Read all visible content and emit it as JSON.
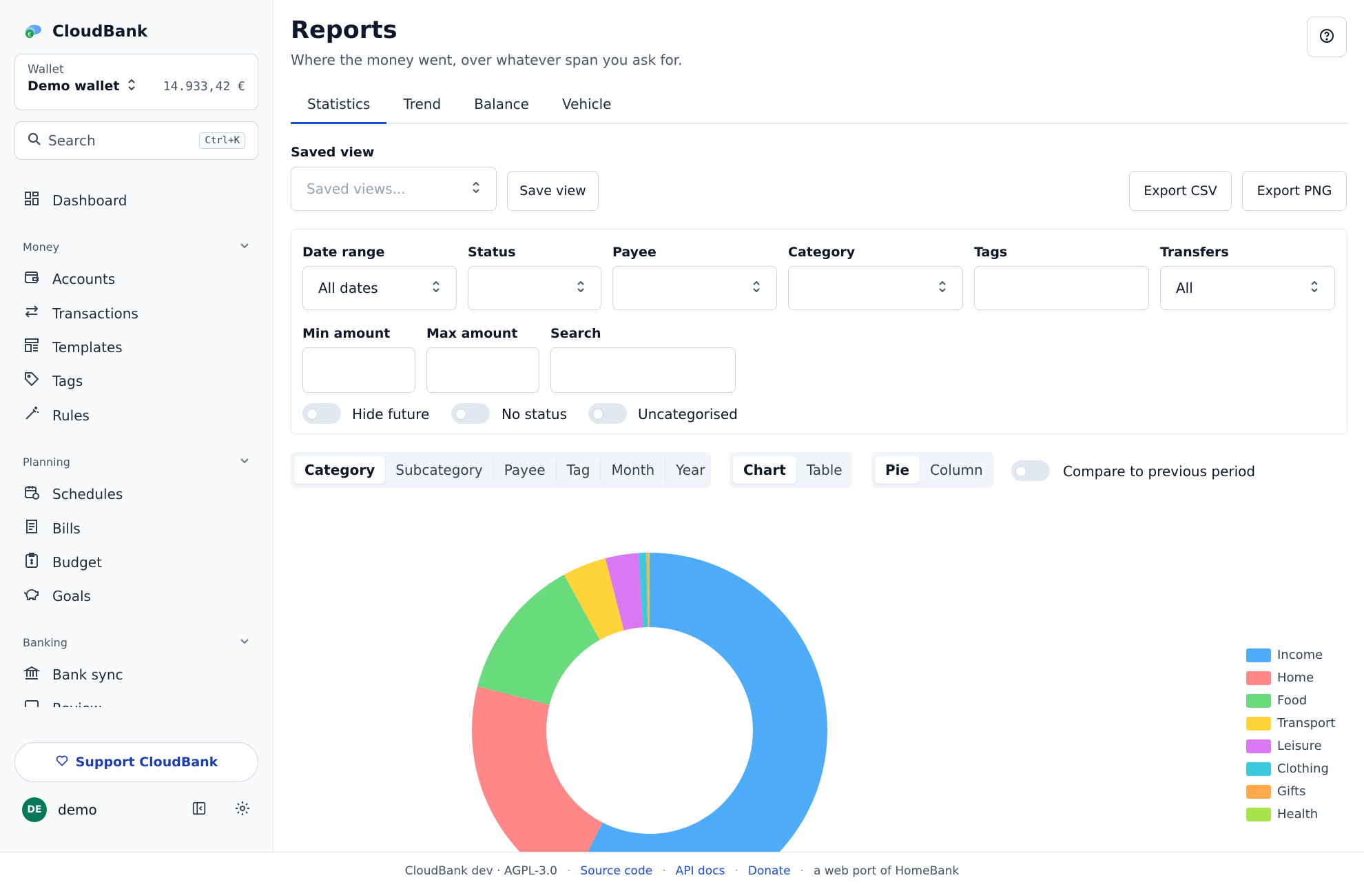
{
  "app": {
    "name": "CloudBank"
  },
  "wallet": {
    "label": "Wallet",
    "name": "Demo wallet",
    "balance": "14.933,42 €"
  },
  "search": {
    "placeholder": "Search",
    "shortcut": "Ctrl+K"
  },
  "sidebar": {
    "dashboard": "Dashboard",
    "sections": [
      {
        "title": "Money",
        "items": [
          "Accounts",
          "Transactions",
          "Templates",
          "Tags",
          "Rules"
        ]
      },
      {
        "title": "Planning",
        "items": [
          "Schedules",
          "Bills",
          "Budget",
          "Goals"
        ]
      },
      {
        "title": "Banking",
        "items": [
          "Bank sync",
          "Review"
        ]
      }
    ],
    "support": "Support CloudBank",
    "user": {
      "initials": "DE",
      "name": "demo"
    }
  },
  "page": {
    "title": "Reports",
    "subtitle": "Where the money went, over whatever span you ask for."
  },
  "tabs": [
    "Statistics",
    "Trend",
    "Balance",
    "Vehicle"
  ],
  "saved_view": {
    "label": "Saved view",
    "placeholder": "Saved views...",
    "save_button": "Save view"
  },
  "export": {
    "csv": "Export CSV",
    "png": "Export PNG"
  },
  "filters": {
    "date_range": {
      "label": "Date range",
      "value": "All dates"
    },
    "status": {
      "label": "Status",
      "value": ""
    },
    "payee": {
      "label": "Payee",
      "value": ""
    },
    "category": {
      "label": "Category",
      "value": ""
    },
    "tags": {
      "label": "Tags",
      "value": ""
    },
    "transfers": {
      "label": "Transfers",
      "value": "All"
    },
    "min_amount": {
      "label": "Min amount",
      "value": ""
    },
    "max_amount": {
      "label": "Max amount",
      "value": ""
    },
    "search": {
      "label": "Search",
      "value": ""
    },
    "toggles": [
      "Hide future",
      "No status",
      "Uncategorised"
    ]
  },
  "groupby": {
    "options": [
      "Category",
      "Subcategory",
      "Payee",
      "Tag",
      "Month",
      "Year"
    ],
    "selected": "Category"
  },
  "view_mode": {
    "options": [
      "Chart",
      "Table"
    ],
    "selected": "Chart"
  },
  "chart_mode": {
    "options": [
      "Pie",
      "Column"
    ],
    "selected": "Pie"
  },
  "compare": {
    "label": "Compare to previous period",
    "enabled": false
  },
  "chart_data": {
    "type": "pie",
    "donut": true,
    "legend_position": "right",
    "categories": [
      "Income",
      "Home",
      "Food",
      "Transport",
      "Leisure",
      "Clothing",
      "Gifts",
      "Health"
    ],
    "values": [
      57.5,
      21.5,
      13.0,
      4.0,
      3.0,
      0.7,
      0.2,
      0.1
    ],
    "colors": [
      "#4dabf7",
      "#ff8787",
      "#69db7c",
      "#ffd43b",
      "#da77f2",
      "#3bc9db",
      "#ffa94d",
      "#a9e34b"
    ]
  },
  "footer": {
    "left": "CloudBank dev · AGPL-3.0",
    "links": [
      "Source code",
      "API docs",
      "Donate"
    ],
    "right": "a web port of HomeBank"
  }
}
